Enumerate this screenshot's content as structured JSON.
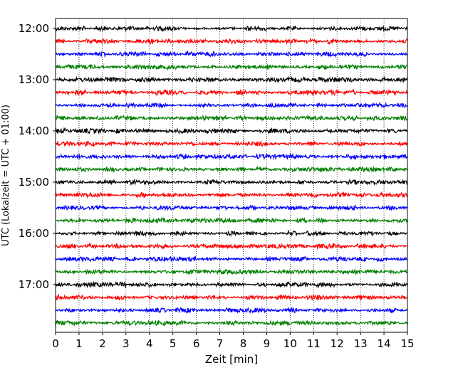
{
  "chart_data": {
    "type": "line",
    "subtype": "helicorder",
    "xlabel": "Zeit  [min]",
    "ylabel": "UTC (Lokalzeit = UTC + 01:00)",
    "xlim": [
      0,
      15
    ],
    "x_ticks": [
      "0",
      "1",
      "2",
      "3",
      "4",
      "5",
      "6",
      "7",
      "8",
      "9",
      "10",
      "11",
      "12",
      "13",
      "14",
      "15"
    ],
    "y_tick_labels": [
      "12:00",
      "13:00",
      "14:00",
      "15:00",
      "16:00",
      "17:00"
    ],
    "grid": "vertical dotted at each minute",
    "trace_interval_minutes": 15,
    "trace_colors": [
      "#000000",
      "#ff0000",
      "#0000ff",
      "#008000"
    ],
    "traces": [
      {
        "start": "12:00",
        "color": "#000000"
      },
      {
        "start": "12:15",
        "color": "#ff0000"
      },
      {
        "start": "12:30",
        "color": "#0000ff"
      },
      {
        "start": "12:45",
        "color": "#008000"
      },
      {
        "start": "13:00",
        "color": "#000000"
      },
      {
        "start": "13:15",
        "color": "#ff0000"
      },
      {
        "start": "13:30",
        "color": "#0000ff"
      },
      {
        "start": "13:45",
        "color": "#008000"
      },
      {
        "start": "14:00",
        "color": "#000000"
      },
      {
        "start": "14:15",
        "color": "#ff0000"
      },
      {
        "start": "14:30",
        "color": "#0000ff"
      },
      {
        "start": "14:45",
        "color": "#008000"
      },
      {
        "start": "15:00",
        "color": "#000000"
      },
      {
        "start": "15:15",
        "color": "#ff0000"
      },
      {
        "start": "15:30",
        "color": "#0000ff"
      },
      {
        "start": "15:45",
        "color": "#008000"
      },
      {
        "start": "16:00",
        "color": "#000000"
      },
      {
        "start": "16:15",
        "color": "#ff0000"
      },
      {
        "start": "16:30",
        "color": "#0000ff"
      },
      {
        "start": "16:45",
        "color": "#008000"
      },
      {
        "start": "17:00",
        "color": "#000000"
      },
      {
        "start": "17:15",
        "color": "#ff0000"
      },
      {
        "start": "17:30",
        "color": "#0000ff"
      },
      {
        "start": "17:45",
        "color": "#008000"
      }
    ]
  }
}
